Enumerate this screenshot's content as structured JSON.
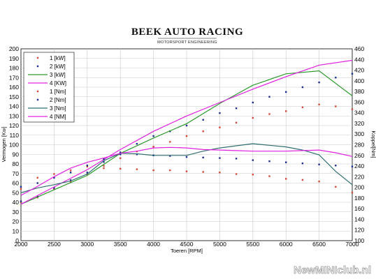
{
  "header": {
    "brand": "BEEK AUTO RACING",
    "tagline": "MOTORSPORT ENGINEERING"
  },
  "watermark": "NewMINIclub.nl",
  "chart_data": {
    "type": "line",
    "xlabel": "Toeren [RPM]",
    "ylabel_left": "Vermogen [Kw]",
    "ylabel_right": "Koppel[Nm]",
    "xlim": [
      2000,
      7000
    ],
    "ylim_left": [
      0,
      200
    ],
    "ylim_right": [
      100,
      460
    ],
    "x_ticks": [
      2000,
      2500,
      3000,
      3500,
      4000,
      4500,
      5000,
      5500,
      6000,
      6500,
      7000
    ],
    "y_left_ticks": [
      0,
      10,
      20,
      30,
      40,
      50,
      60,
      70,
      80,
      90,
      100,
      110,
      120,
      130,
      140,
      150,
      160,
      170,
      180,
      190,
      200
    ],
    "y_right_ticks": [
      100,
      120,
      140,
      160,
      180,
      200,
      220,
      240,
      260,
      280,
      300,
      320,
      340,
      360,
      380,
      400,
      420,
      440,
      460
    ],
    "grid": true,
    "legend_position": "top-left",
    "series": [
      {
        "name": "1 [kW]",
        "axis": "left",
        "style": "dots",
        "color": "#d24a3a",
        "x": [
          2000,
          2250,
          2500,
          2750,
          3000,
          3250,
          3500,
          3750,
          4000,
          4250,
          4500,
          4750,
          5000,
          5250,
          5500,
          5750,
          6000,
          6250,
          6500,
          6750,
          7000
        ],
        "values": [
          40,
          45,
          54,
          61,
          69,
          78,
          86,
          93,
          98,
          103,
          109,
          114,
          118,
          123,
          128,
          132,
          135,
          139,
          142,
          140,
          137
        ]
      },
      {
        "name": "2 [kW]",
        "axis": "left",
        "style": "dots",
        "color": "#1f2f8f",
        "x": [
          2000,
          2250,
          2500,
          2750,
          3000,
          3250,
          3500,
          3750,
          4000,
          4250,
          4500,
          4750,
          5000,
          5250,
          5500,
          5750,
          6000,
          6250,
          6500,
          6750,
          7000
        ],
        "values": [
          41,
          46,
          55,
          63,
          71,
          82,
          92,
          101,
          109,
          114,
          120,
          126,
          133,
          138,
          144,
          150,
          155,
          160,
          165,
          170,
          174
        ]
      },
      {
        "name": "3 [kW]",
        "axis": "left",
        "style": "line",
        "color": "#2e9a2e",
        "x": [
          2000,
          2500,
          3000,
          3500,
          4000,
          4500,
          5000,
          5500,
          6000,
          6500,
          7000
        ],
        "values": [
          38,
          53,
          68,
          91,
          107,
          122,
          143,
          162,
          174,
          177,
          151
        ]
      },
      {
        "name": "4 [KW]",
        "axis": "left",
        "style": "line",
        "color": "#e020e0",
        "x": [
          2000,
          2500,
          3000,
          3500,
          4000,
          4500,
          5000,
          5500,
          6000,
          6500,
          7000
        ],
        "values": [
          38,
          56,
          74,
          95,
          114,
          130,
          144,
          158,
          171,
          183,
          188
        ]
      },
      {
        "name": "1 [Nm]",
        "axis": "right",
        "style": "dots",
        "color": "#d24a3a",
        "x": [
          2000,
          2250,
          2500,
          2750,
          3000,
          3250,
          3500,
          3750,
          4000,
          4250,
          4500,
          4750,
          5000,
          5250,
          5500,
          5750,
          6000,
          6250,
          6500,
          6750,
          7000
        ],
        "values": [
          197,
          218,
          225,
          232,
          239,
          236,
          235,
          234,
          232,
          232,
          230,
          229,
          228,
          225,
          224,
          221,
          216,
          214,
          211,
          201,
          190
        ]
      },
      {
        "name": "2 [Nm]",
        "axis": "right",
        "style": "dots",
        "color": "#1f2f8f",
        "x": [
          2000,
          2250,
          2500,
          2750,
          3000,
          3250,
          3500,
          3750,
          4000,
          4250,
          4500,
          4750,
          5000,
          5250,
          5500,
          5750,
          6000,
          6250,
          6500,
          6750,
          7000
        ],
        "values": [
          201,
          208,
          218,
          228,
          241,
          253,
          262,
          262,
          260,
          259,
          257,
          256,
          255,
          254,
          251,
          249,
          247,
          245,
          243,
          241,
          239
        ]
      },
      {
        "name": "3 [Nm]",
        "axis": "right",
        "style": "line",
        "color": "#2f6f6f",
        "x": [
          2000,
          2250,
          2500,
          2750,
          3000,
          3250,
          3500,
          3750,
          4000,
          4250,
          4500,
          4750,
          5000,
          5250,
          5500,
          5750,
          6000,
          6250,
          6500,
          6750,
          7000
        ],
        "values": [
          190,
          199,
          205,
          212,
          225,
          250,
          264,
          263,
          260,
          260,
          260,
          268,
          274,
          278,
          282,
          279,
          276,
          270,
          261,
          230,
          205
        ]
      },
      {
        "name": "4 [NM]",
        "axis": "right",
        "style": "line",
        "color": "#e020e0",
        "x": [
          2000,
          2250,
          2500,
          2750,
          3000,
          3250,
          3500,
          3750,
          4000,
          4250,
          4500,
          4750,
          5000,
          5250,
          5500,
          5750,
          6000,
          6250,
          6500,
          6750,
          7000
        ],
        "values": [
          185,
          202,
          220,
          236,
          247,
          255,
          264,
          268,
          274,
          275,
          274,
          271,
          270,
          269,
          268,
          268,
          268,
          269,
          270,
          265,
          258
        ]
      }
    ]
  }
}
